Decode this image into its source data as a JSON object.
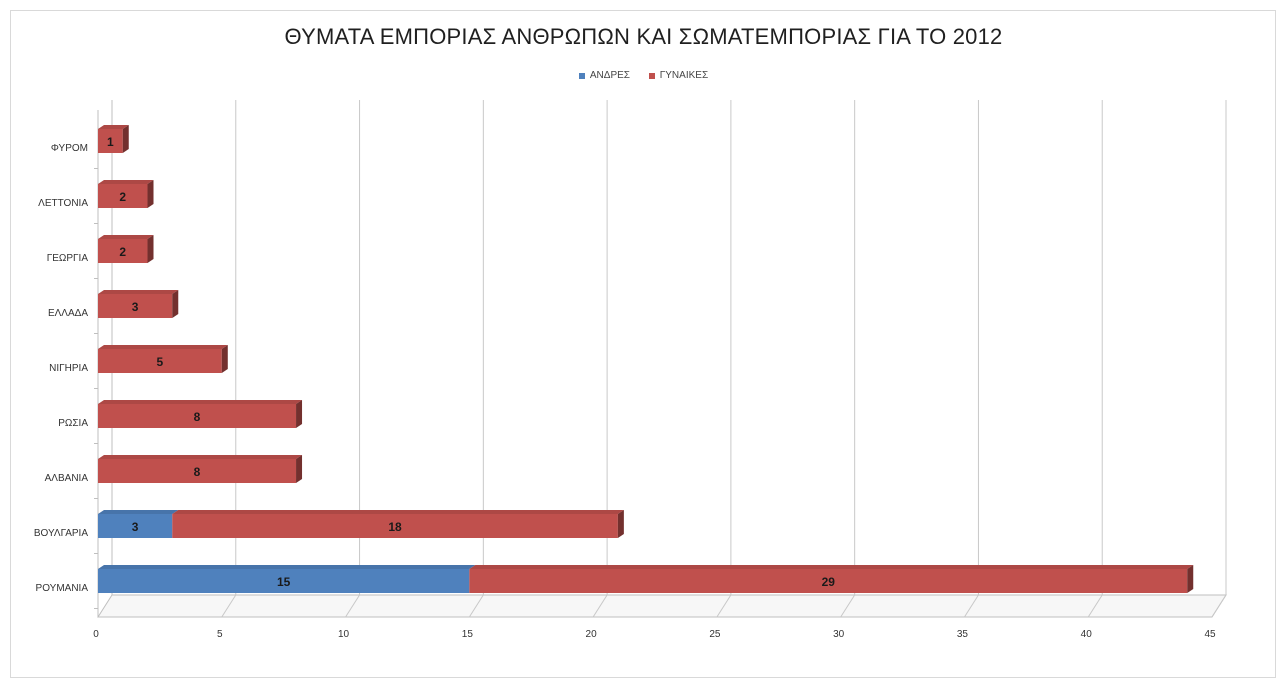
{
  "chart_data": {
    "type": "bar",
    "orientation": "horizontal",
    "stacked": true,
    "title": "ΘΥΜΑΤΑ ΕΜΠΟΡΙΑΣ ΑΝΘΡΩΠΩΝ ΚΑΙ ΣΩΜΑΤΕΜΠΟΡΙΑΣ ΓΙΑ ΤΟ 2012",
    "categories": [
      "ΡΟΥΜΑΝΙΑ",
      "ΒΟΥΛΓΑΡΙΑ",
      "ΑΛΒΑΝΙΑ",
      "ΡΩΣΙΑ",
      "ΝΙΓΗΡΙΑ",
      "ΕΛΛΑΔΑ",
      "ΓΕΩΡΓΙΑ",
      "ΛΕΤΤΟΝΙΑ",
      "ΦΥΡΟΜ"
    ],
    "series": [
      {
        "name": "ΑΝΔΡΕΣ",
        "color": "#4f81bd",
        "values": [
          15,
          3,
          0,
          0,
          0,
          0,
          0,
          0,
          0
        ]
      },
      {
        "name": "ΓΥΝΑΙΚΕΣ",
        "color": "#c0504d",
        "values": [
          29,
          18,
          8,
          8,
          5,
          3,
          2,
          2,
          1
        ]
      }
    ],
    "xlim": [
      0,
      45
    ],
    "xticks": [
      0,
      5,
      10,
      15,
      20,
      25,
      30,
      35,
      40,
      45
    ],
    "grid": true,
    "legend_position": "top"
  }
}
